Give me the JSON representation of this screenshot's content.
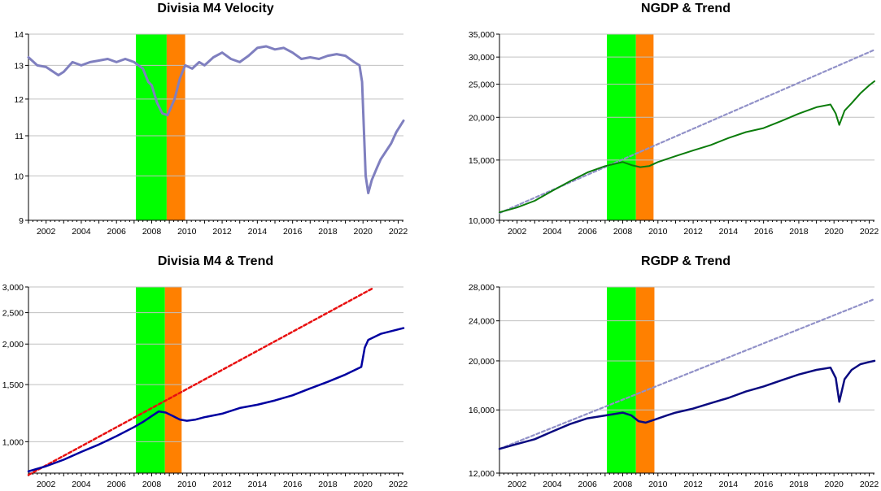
{
  "chart_data": [
    {
      "type": "line",
      "title": "Divisia M4 Velocity",
      "xlabel": "",
      "ylabel": "",
      "xlim": [
        2001.0,
        2022.3
      ],
      "ylim": [
        9,
        14
      ],
      "y_scale": "log",
      "yticks": [
        {
          "v": 9,
          "t": "9"
        },
        {
          "v": 10,
          "t": "10"
        },
        {
          "v": 11,
          "t": "11"
        },
        {
          "v": 12,
          "t": "12"
        },
        {
          "v": 13,
          "t": "13"
        },
        {
          "v": 14,
          "t": "14"
        }
      ],
      "xticks": [
        "2002",
        "2004",
        "2006",
        "2008",
        "2010",
        "2012",
        "2014",
        "2016",
        "2018",
        "2020",
        "2022"
      ],
      "grid": true,
      "shaded_regions": [
        {
          "from": 2007.1,
          "to": 2008.85,
          "color": "#00ff00"
        },
        {
          "from": 2008.85,
          "to": 2009.9,
          "color": "#ff8000"
        }
      ],
      "series": [
        {
          "color": "#7f7fbf",
          "style": "solid",
          "width": 3,
          "points": [
            [
              2001.0,
              13.25
            ],
            [
              2001.5,
              13.0
            ],
            [
              2002.0,
              12.95
            ],
            [
              2002.7,
              12.7
            ],
            [
              2003.0,
              12.8
            ],
            [
              2003.5,
              13.1
            ],
            [
              2004.0,
              13.0
            ],
            [
              2004.5,
              13.1
            ],
            [
              2005.0,
              13.15
            ],
            [
              2005.5,
              13.2
            ],
            [
              2006.0,
              13.1
            ],
            [
              2006.5,
              13.2
            ],
            [
              2007.0,
              13.1
            ],
            [
              2007.5,
              12.9
            ],
            [
              2007.8,
              12.5
            ],
            [
              2008.0,
              12.4
            ],
            [
              2008.3,
              11.9
            ],
            [
              2008.6,
              11.6
            ],
            [
              2008.9,
              11.55
            ],
            [
              2009.3,
              12.0
            ],
            [
              2009.6,
              12.6
            ],
            [
              2009.9,
              13.0
            ],
            [
              2010.3,
              12.9
            ],
            [
              2010.7,
              13.1
            ],
            [
              2011.0,
              13.0
            ],
            [
              2011.5,
              13.25
            ],
            [
              2012.0,
              13.4
            ],
            [
              2012.5,
              13.2
            ],
            [
              2013.0,
              13.1
            ],
            [
              2013.5,
              13.3
            ],
            [
              2014.0,
              13.55
            ],
            [
              2014.5,
              13.6
            ],
            [
              2015.0,
              13.5
            ],
            [
              2015.5,
              13.55
            ],
            [
              2016.0,
              13.4
            ],
            [
              2016.5,
              13.2
            ],
            [
              2017.0,
              13.25
            ],
            [
              2017.5,
              13.2
            ],
            [
              2018.0,
              13.3
            ],
            [
              2018.5,
              13.35
            ],
            [
              2019.0,
              13.3
            ],
            [
              2019.5,
              13.1
            ],
            [
              2019.8,
              13.0
            ],
            [
              2019.95,
              12.5
            ],
            [
              2020.15,
              10.0
            ],
            [
              2020.3,
              9.6
            ],
            [
              2020.5,
              9.9
            ],
            [
              2020.8,
              10.2
            ],
            [
              2021.0,
              10.4
            ],
            [
              2021.3,
              10.6
            ],
            [
              2021.6,
              10.8
            ],
            [
              2021.9,
              11.1
            ],
            [
              2022.3,
              11.4
            ]
          ]
        }
      ]
    },
    {
      "type": "line",
      "title": "NGDP & Trend",
      "xlabel": "",
      "ylabel": "",
      "xlim": [
        2001.0,
        2022.3
      ],
      "ylim": [
        10000,
        35000
      ],
      "y_scale": "log",
      "yticks": [
        {
          "v": 10000,
          "t": "10,000"
        },
        {
          "v": 15000,
          "t": "15,000"
        },
        {
          "v": 20000,
          "t": "20,000"
        },
        {
          "v": 25000,
          "t": "25,000"
        },
        {
          "v": 30000,
          "t": "30,000"
        },
        {
          "v": 35000,
          "t": "35,000"
        }
      ],
      "xticks": [
        "2002",
        "2004",
        "2006",
        "2008",
        "2010",
        "2012",
        "2014",
        "2016",
        "2018",
        "2020",
        "2022"
      ],
      "grid": true,
      "shaded_regions": [
        {
          "from": 2007.1,
          "to": 2008.75,
          "color": "#00ff00"
        },
        {
          "from": 2008.75,
          "to": 2009.75,
          "color": "#ff8000"
        }
      ],
      "series": [
        {
          "color": "#9191c8",
          "style": "dashed",
          "width": 2.2,
          "points": [
            [
              2001.0,
              10500
            ],
            [
              2022.3,
              31500
            ]
          ]
        },
        {
          "color": "#0b7c0b",
          "style": "solid",
          "width": 2,
          "points": [
            [
              2001.0,
              10550
            ],
            [
              2002.0,
              10900
            ],
            [
              2003.0,
              11400
            ],
            [
              2004.0,
              12200
            ],
            [
              2005.0,
              13000
            ],
            [
              2006.0,
              13800
            ],
            [
              2007.0,
              14400
            ],
            [
              2007.5,
              14600
            ],
            [
              2008.0,
              14800
            ],
            [
              2008.5,
              14500
            ],
            [
              2009.0,
              14300
            ],
            [
              2009.5,
              14400
            ],
            [
              2010.0,
              14800
            ],
            [
              2011.0,
              15400
            ],
            [
              2012.0,
              16000
            ],
            [
              2013.0,
              16600
            ],
            [
              2014.0,
              17400
            ],
            [
              2015.0,
              18100
            ],
            [
              2016.0,
              18600
            ],
            [
              2017.0,
              19500
            ],
            [
              2018.0,
              20500
            ],
            [
              2019.0,
              21400
            ],
            [
              2019.8,
              21800
            ],
            [
              2020.1,
              20500
            ],
            [
              2020.3,
              19000
            ],
            [
              2020.6,
              20900
            ],
            [
              2021.0,
              22000
            ],
            [
              2021.5,
              23500
            ],
            [
              2022.0,
              24800
            ],
            [
              2022.3,
              25500
            ]
          ]
        }
      ]
    },
    {
      "type": "line",
      "title": "Divisia M4 & Trend",
      "xlabel": "",
      "ylabel": "",
      "xlim": [
        2001.0,
        2022.3
      ],
      "ylim": [
        800,
        3000
      ],
      "y_scale": "log",
      "yticks": [
        {
          "v": 1000,
          "t": "1,000"
        },
        {
          "v": 1500,
          "t": "1,500"
        },
        {
          "v": 2000,
          "t": "2,000"
        },
        {
          "v": 2500,
          "t": "2,500"
        },
        {
          "v": 3000,
          "t": "3,000"
        }
      ],
      "xticks": [
        "2002",
        "2004",
        "2006",
        "2008",
        "2010",
        "2012",
        "2014",
        "2016",
        "2018",
        "2020",
        "2022"
      ],
      "grid": true,
      "shaded_regions": [
        {
          "from": 2007.1,
          "to": 2008.75,
          "color": "#00ff00"
        },
        {
          "from": 2008.75,
          "to": 2009.7,
          "color": "#ff8000"
        }
      ],
      "series": [
        {
          "color": "#e81010",
          "style": "dashed",
          "width": 2.5,
          "points": [
            [
              2001.0,
              790
            ],
            [
              2020.5,
              2960
            ]
          ]
        },
        {
          "color": "#0000a0",
          "style": "solid",
          "width": 2.5,
          "points": [
            [
              2001.0,
              810
            ],
            [
              2002.0,
              840
            ],
            [
              2003.0,
              880
            ],
            [
              2004.0,
              930
            ],
            [
              2005.0,
              980
            ],
            [
              2006.0,
              1040
            ],
            [
              2007.0,
              1110
            ],
            [
              2007.5,
              1150
            ],
            [
              2008.0,
              1200
            ],
            [
              2008.4,
              1240
            ],
            [
              2008.8,
              1230
            ],
            [
              2009.2,
              1200
            ],
            [
              2009.6,
              1170
            ],
            [
              2010.0,
              1160
            ],
            [
              2010.5,
              1170
            ],
            [
              2011.0,
              1190
            ],
            [
              2012.0,
              1220
            ],
            [
              2013.0,
              1270
            ],
            [
              2014.0,
              1300
            ],
            [
              2015.0,
              1340
            ],
            [
              2016.0,
              1390
            ],
            [
              2017.0,
              1460
            ],
            [
              2018.0,
              1530
            ],
            [
              2019.0,
              1610
            ],
            [
              2019.6,
              1670
            ],
            [
              2019.9,
              1700
            ],
            [
              2020.1,
              1950
            ],
            [
              2020.3,
              2060
            ],
            [
              2021.0,
              2150
            ],
            [
              2022.3,
              2240
            ]
          ]
        }
      ]
    },
    {
      "type": "line",
      "title": "RGDP & Trend",
      "xlabel": "",
      "ylabel": "",
      "xlim": [
        2001.0,
        2022.3
      ],
      "ylim": [
        12000,
        28000
      ],
      "y_scale": "log",
      "yticks": [
        {
          "v": 12000,
          "t": "12,000"
        },
        {
          "v": 16000,
          "t": "16,000"
        },
        {
          "v": 20000,
          "t": "20,000"
        },
        {
          "v": 24000,
          "t": "24,000"
        },
        {
          "v": 28000,
          "t": "28,000"
        }
      ],
      "xticks": [
        "2002",
        "2004",
        "2006",
        "2008",
        "2010",
        "2012",
        "2014",
        "2016",
        "2018",
        "2020",
        "2022"
      ],
      "grid": true,
      "shaded_regions": [
        {
          "from": 2007.1,
          "to": 2008.75,
          "color": "#00ff00"
        },
        {
          "from": 2008.75,
          "to": 2009.8,
          "color": "#ff8000"
        }
      ],
      "series": [
        {
          "color": "#9191c8",
          "style": "dashed",
          "width": 2.2,
          "points": [
            [
              2001.0,
              13400
            ],
            [
              2022.3,
              26500
            ]
          ]
        },
        {
          "color": "#0a0a80",
          "style": "solid",
          "width": 2.5,
          "points": [
            [
              2001.0,
              13400
            ],
            [
              2002.0,
              13700
            ],
            [
              2003.0,
              14000
            ],
            [
              2004.0,
              14500
            ],
            [
              2005.0,
              15000
            ],
            [
              2006.0,
              15400
            ],
            [
              2007.0,
              15600
            ],
            [
              2007.5,
              15700
            ],
            [
              2008.0,
              15800
            ],
            [
              2008.5,
              15600
            ],
            [
              2008.9,
              15200
            ],
            [
              2009.3,
              15100
            ],
            [
              2009.8,
              15300
            ],
            [
              2010.5,
              15600
            ],
            [
              2011.0,
              15800
            ],
            [
              2012.0,
              16100
            ],
            [
              2013.0,
              16500
            ],
            [
              2014.0,
              16900
            ],
            [
              2015.0,
              17400
            ],
            [
              2016.0,
              17800
            ],
            [
              2017.0,
              18300
            ],
            [
              2018.0,
              18800
            ],
            [
              2019.0,
              19200
            ],
            [
              2019.8,
              19400
            ],
            [
              2020.1,
              18500
            ],
            [
              2020.3,
              16600
            ],
            [
              2020.6,
              18400
            ],
            [
              2021.0,
              19200
            ],
            [
              2021.5,
              19700
            ],
            [
              2022.0,
              19900
            ],
            [
              2022.3,
              20000
            ]
          ]
        }
      ]
    }
  ]
}
